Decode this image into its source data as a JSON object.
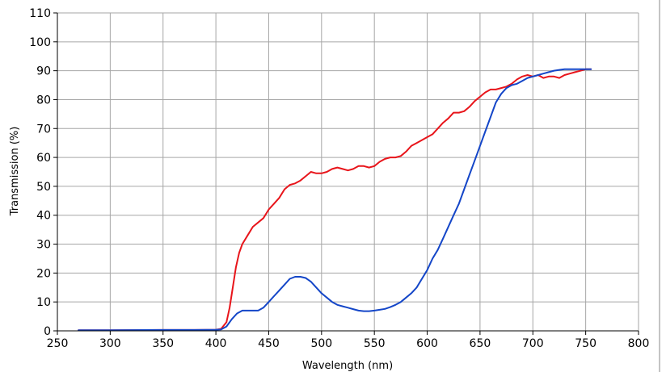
{
  "chart_data": {
    "type": "line",
    "title": "",
    "xlabel": "Wavelength (nm)",
    "ylabel": "Transmission (%)",
    "xlim": [
      250,
      800
    ],
    "ylim": [
      0,
      110
    ],
    "xticks": [
      250,
      300,
      350,
      400,
      450,
      500,
      550,
      600,
      650,
      700,
      750,
      800
    ],
    "yticks": [
      0,
      10,
      20,
      30,
      40,
      50,
      60,
      70,
      80,
      90,
      100,
      110
    ],
    "grid": true,
    "legend": "none",
    "series": [
      {
        "color": "#e8151b",
        "points": [
          [
            270,
            0.2
          ],
          [
            300,
            0.2
          ],
          [
            350,
            0.3
          ],
          [
            380,
            0.3
          ],
          [
            400,
            0.4
          ],
          [
            405,
            0.7
          ],
          [
            410,
            3
          ],
          [
            413,
            8
          ],
          [
            416,
            15
          ],
          [
            419,
            22
          ],
          [
            422,
            27
          ],
          [
            425,
            30
          ],
          [
            430,
            33
          ],
          [
            435,
            36
          ],
          [
            440,
            37.5
          ],
          [
            445,
            39
          ],
          [
            450,
            42
          ],
          [
            455,
            44
          ],
          [
            460,
            46
          ],
          [
            465,
            49
          ],
          [
            470,
            50.5
          ],
          [
            475,
            51
          ],
          [
            480,
            52
          ],
          [
            485,
            53.5
          ],
          [
            490,
            55
          ],
          [
            495,
            54.5
          ],
          [
            500,
            54.5
          ],
          [
            505,
            55
          ],
          [
            510,
            56
          ],
          [
            515,
            56.5
          ],
          [
            520,
            56
          ],
          [
            525,
            55.5
          ],
          [
            530,
            56
          ],
          [
            535,
            57
          ],
          [
            540,
            57
          ],
          [
            545,
            56.5
          ],
          [
            550,
            57
          ],
          [
            555,
            58.5
          ],
          [
            560,
            59.5
          ],
          [
            565,
            60
          ],
          [
            570,
            60
          ],
          [
            575,
            60.5
          ],
          [
            580,
            62
          ],
          [
            585,
            64
          ],
          [
            590,
            65
          ],
          [
            595,
            66
          ],
          [
            600,
            67
          ],
          [
            605,
            68
          ],
          [
            610,
            70
          ],
          [
            615,
            72
          ],
          [
            620,
            73.5
          ],
          [
            625,
            75.5
          ],
          [
            630,
            75.5
          ],
          [
            635,
            76
          ],
          [
            640,
            77.5
          ],
          [
            645,
            79.5
          ],
          [
            650,
            81
          ],
          [
            655,
            82.5
          ],
          [
            660,
            83.5
          ],
          [
            665,
            83.5
          ],
          [
            670,
            84
          ],
          [
            675,
            84.5
          ],
          [
            680,
            85.5
          ],
          [
            685,
            87
          ],
          [
            690,
            88
          ],
          [
            695,
            88.5
          ],
          [
            700,
            88
          ],
          [
            705,
            88.5
          ],
          [
            710,
            87.5
          ],
          [
            715,
            88
          ],
          [
            720,
            88
          ],
          [
            725,
            87.5
          ],
          [
            730,
            88.5
          ],
          [
            735,
            89
          ],
          [
            740,
            89.5
          ],
          [
            745,
            90
          ],
          [
            750,
            90.5
          ],
          [
            755,
            90.5
          ]
        ]
      },
      {
        "color": "#1446c8",
        "points": [
          [
            270,
            0.2
          ],
          [
            300,
            0.2
          ],
          [
            350,
            0.3
          ],
          [
            380,
            0.3
          ],
          [
            400,
            0.4
          ],
          [
            405,
            0.5
          ],
          [
            410,
            1.5
          ],
          [
            415,
            4
          ],
          [
            420,
            6
          ],
          [
            425,
            7
          ],
          [
            430,
            7
          ],
          [
            435,
            7
          ],
          [
            440,
            7
          ],
          [
            445,
            8
          ],
          [
            450,
            10
          ],
          [
            455,
            12
          ],
          [
            460,
            14
          ],
          [
            465,
            16
          ],
          [
            470,
            18
          ],
          [
            475,
            18.7
          ],
          [
            480,
            18.7
          ],
          [
            485,
            18.3
          ],
          [
            490,
            17
          ],
          [
            495,
            15
          ],
          [
            500,
            13
          ],
          [
            505,
            11.5
          ],
          [
            510,
            10
          ],
          [
            515,
            9
          ],
          [
            520,
            8.5
          ],
          [
            525,
            8
          ],
          [
            530,
            7.5
          ],
          [
            535,
            7
          ],
          [
            540,
            6.8
          ],
          [
            545,
            6.8
          ],
          [
            550,
            7
          ],
          [
            555,
            7.3
          ],
          [
            560,
            7.6
          ],
          [
            565,
            8.2
          ],
          [
            570,
            9
          ],
          [
            575,
            10
          ],
          [
            580,
            11.5
          ],
          [
            585,
            13
          ],
          [
            590,
            15
          ],
          [
            595,
            18
          ],
          [
            600,
            21
          ],
          [
            605,
            25
          ],
          [
            610,
            28
          ],
          [
            615,
            32
          ],
          [
            620,
            36
          ],
          [
            625,
            40
          ],
          [
            630,
            44
          ],
          [
            635,
            49
          ],
          [
            640,
            54
          ],
          [
            645,
            59
          ],
          [
            650,
            64
          ],
          [
            655,
            69
          ],
          [
            660,
            74
          ],
          [
            665,
            79
          ],
          [
            670,
            82
          ],
          [
            675,
            84
          ],
          [
            680,
            85
          ],
          [
            685,
            85.5
          ],
          [
            690,
            86.5
          ],
          [
            695,
            87.5
          ],
          [
            700,
            88
          ],
          [
            705,
            88.5
          ],
          [
            710,
            89
          ],
          [
            715,
            89.5
          ],
          [
            720,
            90
          ],
          [
            725,
            90.3
          ],
          [
            730,
            90.5
          ],
          [
            735,
            90.5
          ],
          [
            740,
            90.5
          ],
          [
            745,
            90.5
          ],
          [
            750,
            90.5
          ],
          [
            755,
            90.5
          ]
        ]
      }
    ]
  }
}
